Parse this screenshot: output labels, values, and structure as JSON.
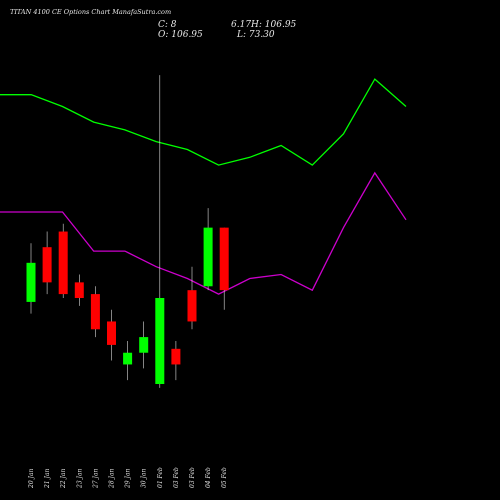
{
  "chart_data": {
    "type": "candlestick",
    "title": "TITAN 4100 CE Options Chart ManafaSutra.com",
    "ohlc": {
      "open_label": "O: 106.95",
      "close_label": "C: 8",
      "high_label": "6.17H: 106.95",
      "low_label": "L: 73.30"
    },
    "colors": {
      "background": "#000000",
      "up": "#00ff00",
      "down": "#ff0000",
      "upper_line": "#00ff00",
      "lower_line": "#cc00cc",
      "wick": "#dddddd",
      "text": "#e8e8e8"
    },
    "dates": [
      "20 Jan",
      "21 Jan",
      "22 Jan",
      "23 Jan",
      "27 Jan",
      "28 Jan",
      "29 Jan",
      "30 Jan",
      "01 Feb",
      "03 Feb",
      "03 Feb",
      "04 Feb",
      "05 Feb"
    ],
    "candles": [
      {
        "open": 43,
        "close": 53,
        "high": 58,
        "low": 40,
        "up": true
      },
      {
        "open": 57,
        "close": 48,
        "high": 61,
        "low": 45,
        "up": false
      },
      {
        "open": 61,
        "close": 45,
        "high": 63,
        "low": 44,
        "up": false
      },
      {
        "open": 48,
        "close": 44,
        "high": 50,
        "low": 42,
        "up": false
      },
      {
        "open": 45,
        "close": 36,
        "high": 47,
        "low": 34,
        "up": false
      },
      {
        "open": 38,
        "close": 32,
        "high": 41,
        "low": 28,
        "up": false
      },
      {
        "open": 27,
        "close": 30,
        "high": 33,
        "low": 23,
        "up": true
      },
      {
        "open": 30,
        "close": 34,
        "high": 38,
        "low": 26,
        "up": true
      },
      {
        "open": 22,
        "close": 44,
        "high": 101,
        "low": 21,
        "up": true
      },
      {
        "open": 31,
        "close": 27,
        "high": 33,
        "low": 23,
        "up": false
      },
      {
        "open": 46,
        "close": 38,
        "high": 52,
        "low": 36,
        "up": false
      },
      {
        "open": 47,
        "close": 62,
        "high": 67,
        "low": 46,
        "up": true
      },
      {
        "open": 62,
        "close": 46,
        "high": 62,
        "low": 41,
        "up": false
      }
    ],
    "upper_line": [
      96,
      96,
      93,
      89,
      87,
      84,
      82,
      78,
      80,
      83,
      78,
      86,
      100,
      93
    ],
    "lower_line": [
      66,
      66,
      66,
      56,
      56,
      52,
      49,
      45,
      49,
      50,
      46,
      62,
      76,
      64
    ],
    "price_range": [
      0,
      110
    ]
  }
}
